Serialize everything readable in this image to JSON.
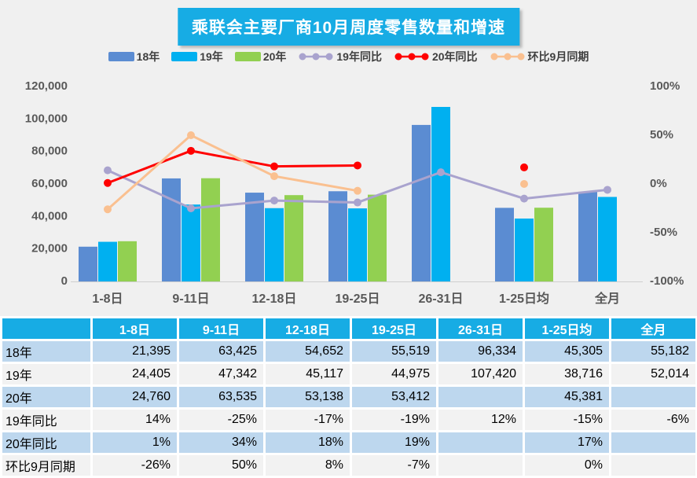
{
  "title": "乘联会主要厂商10月周度零售数量和增速",
  "colors": {
    "banner": "#17ACE4",
    "table_header_bg": "#17ACE4",
    "row_blue": "#BDD7EE",
    "row_gray": "#F2F2F2",
    "chart_bg": "#F0F0F0",
    "axis_text": "#595959"
  },
  "chart_data": {
    "type": "bar",
    "subtype": "combo-bar-line",
    "title": "乘联会主要厂商10月周度零售数量和增速",
    "categories": [
      "1-8日",
      "9-11日",
      "12-18日",
      "19-25日",
      "26-31日",
      "1-25日均",
      "全月"
    ],
    "bar_series": [
      {
        "name": "18年",
        "color": "#5B8CD2",
        "values": [
          21395,
          63425,
          54652,
          55519,
          96334,
          45305,
          55182
        ]
      },
      {
        "name": "19年",
        "color": "#00B0F0",
        "values": [
          24405,
          47342,
          45117,
          44975,
          107420,
          38716,
          52014
        ]
      },
      {
        "name": "20年",
        "color": "#92D051",
        "values": [
          24760,
          63535,
          53138,
          53412,
          null,
          45381,
          null
        ]
      }
    ],
    "line_series": [
      {
        "name": "19年同比",
        "color": "#A9A3CE",
        "values": [
          14,
          -25,
          -17,
          -19,
          12,
          -15,
          -6
        ]
      },
      {
        "name": "20年同比",
        "color": "#FF0000",
        "values": [
          1,
          34,
          18,
          19,
          null,
          17,
          null
        ]
      },
      {
        "name": "环比9月同期",
        "color": "#FAC090",
        "values": [
          -26,
          50,
          8,
          -7,
          null,
          0,
          null
        ]
      }
    ],
    "left_axis": {
      "min": 0,
      "max": 120000,
      "tick_labels": [
        "0",
        "20,000",
        "40,000",
        "60,000",
        "80,000",
        "100,000",
        "120,000"
      ]
    },
    "right_axis": {
      "min": -100,
      "max": 100,
      "tick_labels": [
        "100%",
        "50%",
        "0%",
        "-50%",
        "-100%"
      ]
    },
    "legend_position": "top",
    "grid": false
  },
  "table": {
    "header": [
      "",
      "1-8日",
      "9-11日",
      "12-18日",
      "19-25日",
      "26-31日",
      "1-25日均",
      "全月"
    ],
    "rows": [
      {
        "label": "18年",
        "cells": [
          "21,395",
          "63,425",
          "54,652",
          "55,519",
          "96,334",
          "45,305",
          "55,182"
        ]
      },
      {
        "label": "19年",
        "cells": [
          "24,405",
          "47,342",
          "45,117",
          "44,975",
          "107,420",
          "38,716",
          "52,014"
        ]
      },
      {
        "label": "20年",
        "cells": [
          "24,760",
          "63,535",
          "53,138",
          "53,412",
          "",
          "45,381",
          ""
        ]
      },
      {
        "label": "19年同比",
        "cells": [
          "14%",
          "-25%",
          "-17%",
          "-19%",
          "12%",
          "-15%",
          "-6%"
        ]
      },
      {
        "label": "20年同比",
        "cells": [
          "1%",
          "34%",
          "18%",
          "19%",
          "",
          "17%",
          ""
        ]
      },
      {
        "label": "环比9月同期",
        "cells": [
          "-26%",
          "50%",
          "8%",
          "-7%",
          "",
          "0%",
          ""
        ]
      }
    ]
  }
}
